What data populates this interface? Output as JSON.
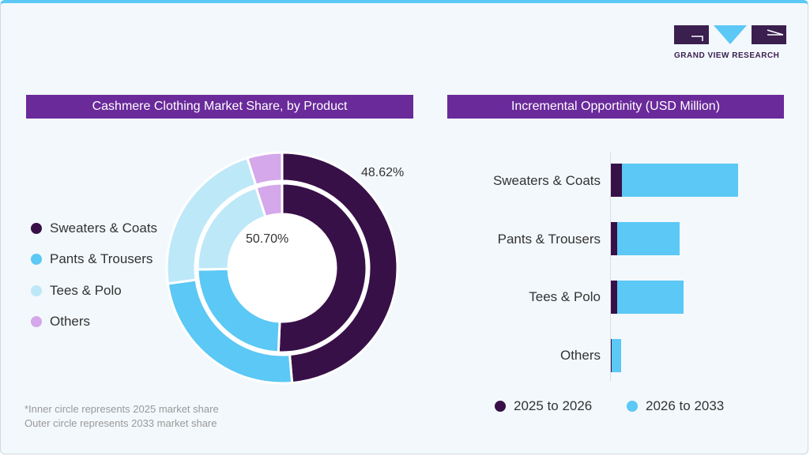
{
  "brand": {
    "logo_text": "GRAND VIEW RESEARCH"
  },
  "colors": {
    "sweaters": "#381048",
    "pants": "#5bc8f5",
    "tees": "#bde8f8",
    "others": "#d4a8ea",
    "header": "#6a2a9a"
  },
  "chart_data": [
    {
      "type": "pie",
      "title": "Cashmere Clothing Market Share, by Product",
      "categories": [
        "Sweaters & Coats",
        "Pants & Trousers",
        "Tees & Polo",
        "Others"
      ],
      "series": [
        {
          "name": "2025",
          "ring": "inner",
          "values": [
            50.7,
            24.0,
            20.3,
            5.0
          ]
        },
        {
          "name": "2033",
          "ring": "outer",
          "values": [
            48.62,
            24.2,
            22.3,
            4.88
          ]
        }
      ],
      "data_labels": {
        "inner": "50.70%",
        "outer": "48.62%"
      },
      "legend": "left",
      "notes": [
        "*Inner circle represents 2025 market share",
        "Outer circle represents 2033 market share"
      ]
    },
    {
      "type": "bar",
      "orientation": "horizontal",
      "stacked": true,
      "title": "Incremental Opportinity (USD Million)",
      "categories": [
        "Sweaters & Coats",
        "Pants & Trousers",
        "Tees & Polo",
        "Others"
      ],
      "series": [
        {
          "name": "2025 to 2026",
          "values": [
            14,
            8,
            8,
            1
          ]
        },
        {
          "name": "2026 to 2033",
          "values": [
            147,
            79,
            84,
            12
          ]
        }
      ],
      "legend": "bottom",
      "grid": false
    }
  ]
}
